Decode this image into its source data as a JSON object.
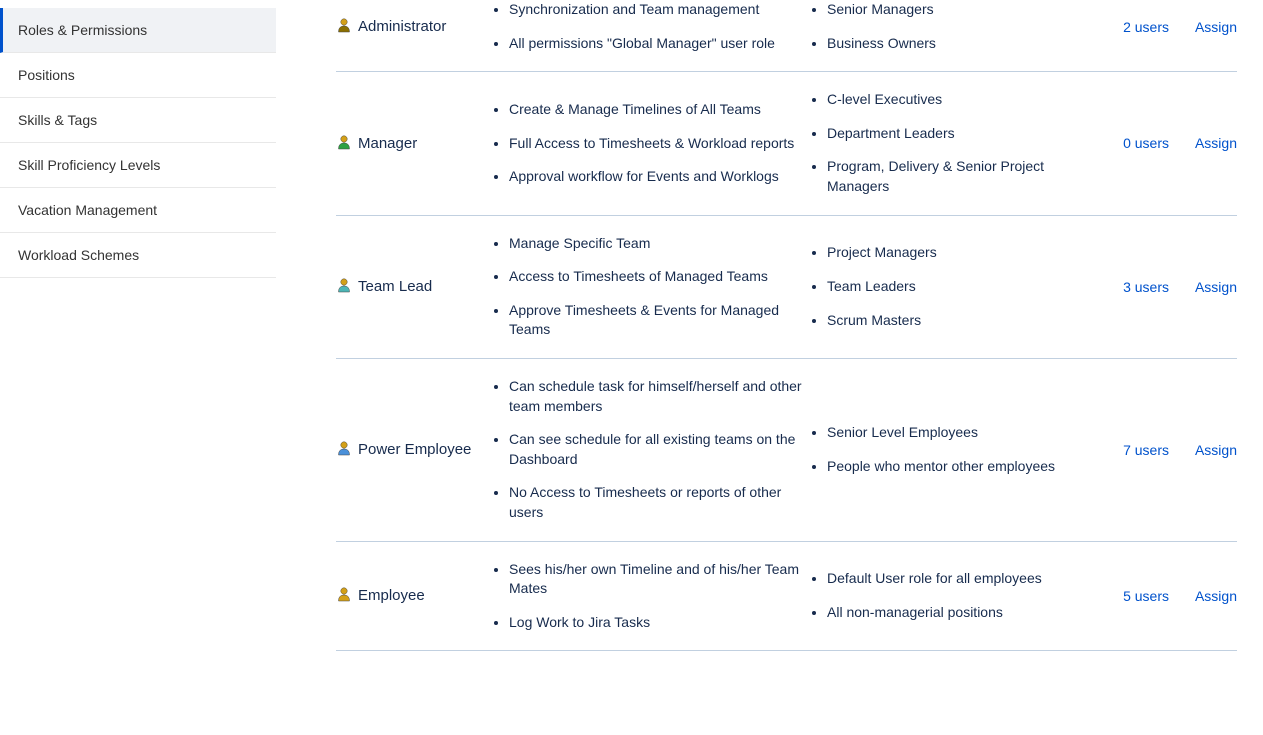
{
  "sidebar": {
    "items": [
      {
        "label": "Roles & Permissions",
        "active": true
      },
      {
        "label": "Positions",
        "active": false
      },
      {
        "label": "Skills & Tags",
        "active": false
      },
      {
        "label": "Skill Proficiency Levels",
        "active": false
      },
      {
        "label": "Vacation Management",
        "active": false
      },
      {
        "label": "Workload Schemes",
        "active": false
      }
    ]
  },
  "roles": [
    {
      "name": "Administrator",
      "iconColor": "#d4a017",
      "iconBody": "#8b6f00",
      "permissions": [
        "Synchronization and Team management",
        "All permissions \"Global Manager\" user role"
      ],
      "audience": [
        "Senior Managers",
        "Business Owners"
      ],
      "users": "2 users",
      "assign": "Assign"
    },
    {
      "name": "Manager",
      "iconColor": "#d4a017",
      "iconBody": "#2ea043",
      "permissions": [
        "Create & Manage Timelines of All Teams",
        "Full Access to Timesheets & Workload reports",
        "Approval workflow for Events and Worklogs"
      ],
      "audience": [
        "C-level Executives",
        "Department Leaders",
        "Program, Delivery & Senior Project Managers"
      ],
      "users": "0 users",
      "assign": "Assign"
    },
    {
      "name": "Team Lead",
      "iconColor": "#d4a017",
      "iconBody": "#4db5b5",
      "permissions": [
        "Manage Specific Team",
        "Access to Timesheets of Managed Teams",
        "Approve Timesheets & Events for Managed Teams"
      ],
      "audience": [
        "Project Managers",
        "Team Leaders",
        "Scrum Masters"
      ],
      "users": "3 users",
      "assign": "Assign"
    },
    {
      "name": "Power Employee",
      "iconColor": "#d4a017",
      "iconBody": "#4a90d9",
      "permissions": [
        "Can schedule task for himself/herself and other team members",
        "Can see schedule for all existing teams on the Dashboard",
        "No Access to Timesheets or reports of other users"
      ],
      "audience": [
        "Senior Level Employees",
        "People who mentor other employees"
      ],
      "users": "7 users",
      "assign": "Assign"
    },
    {
      "name": "Employee",
      "iconColor": "#d4a017",
      "iconBody": "#d4a017",
      "permissions": [
        "Sees his/her own Timeline and of his/her Team Mates",
        "Log Work to Jira Tasks"
      ],
      "audience": [
        "Default User role for all employees",
        "All non-managerial positions"
      ],
      "users": "5 users",
      "assign": "Assign"
    }
  ]
}
